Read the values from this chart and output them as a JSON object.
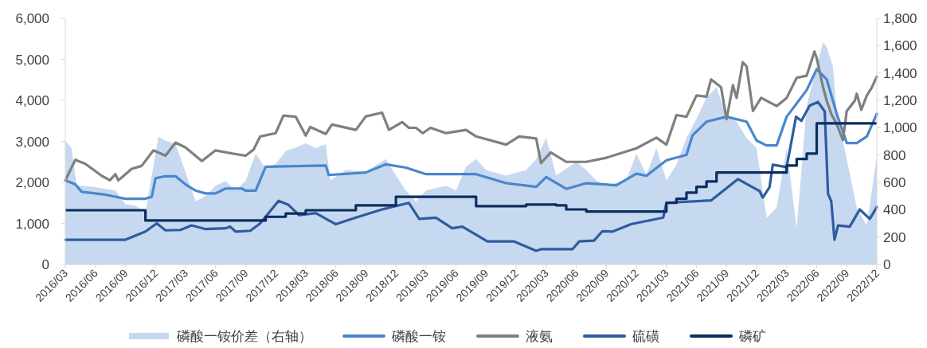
{
  "chart_data": {
    "type": "line",
    "xlim": [
      "2016-03",
      "2022-12"
    ],
    "xticks": [
      {
        "value": "2016-03",
        "label": "2016/03"
      },
      {
        "value": "2016-06",
        "label": "2016/06"
      },
      {
        "value": "2016-09",
        "label": "2016/09"
      },
      {
        "value": "2016-12",
        "label": "2016/12"
      },
      {
        "value": "2017-03",
        "label": "2017/03"
      },
      {
        "value": "2017-06",
        "label": "2017/06"
      },
      {
        "value": "2017-09",
        "label": "2017/09"
      },
      {
        "value": "2017-12",
        "label": "2017/12"
      },
      {
        "value": "2018-03",
        "label": "2018/03"
      },
      {
        "value": "2018-06",
        "label": "2018/06"
      },
      {
        "value": "2018-09",
        "label": "2018/09"
      },
      {
        "value": "2018-12",
        "label": "2018/12"
      },
      {
        "value": "2019-03",
        "label": "2019/03"
      },
      {
        "value": "2019-06",
        "label": "2019/06"
      },
      {
        "value": "2019-09",
        "label": "2019/09"
      },
      {
        "value": "2019-12",
        "label": "2019/12"
      },
      {
        "value": "2020-03",
        "label": "2020/03"
      },
      {
        "value": "2020-06",
        "label": "2020/06"
      },
      {
        "value": "2020-09",
        "label": "2020/09"
      },
      {
        "value": "2020-12",
        "label": "2020/12"
      },
      {
        "value": "2021-03",
        "label": "2021/03"
      },
      {
        "value": "2021-06",
        "label": "2021/06"
      },
      {
        "value": "2021-09",
        "label": "2021/09"
      },
      {
        "value": "2021-12",
        "label": "2021/12"
      },
      {
        "value": "2022-03",
        "label": "2022/03"
      },
      {
        "value": "2022-06",
        "label": "2022/06"
      },
      {
        "value": "2022-09",
        "label": "2022/09"
      },
      {
        "value": "2022-12",
        "label": "2022/12"
      }
    ],
    "ylim": [
      0,
      6000
    ],
    "yticks": [
      0,
      {
        "value": 1000,
        "label": "1,000"
      },
      {
        "value": 2000,
        "label": "2,000"
      },
      {
        "value": 3000,
        "label": "3,000"
      },
      {
        "value": 4000,
        "label": "4,000"
      },
      {
        "value": 5000,
        "label": "5,000"
      },
      {
        "value": 6000,
        "label": "6,000"
      }
    ],
    "y2lim": [
      0,
      1800
    ],
    "y2ticks": [
      0,
      200,
      400,
      600,
      800,
      {
        "value": 1000,
        "label": "1,000"
      },
      {
        "value": 1200,
        "label": "1,200"
      },
      {
        "value": 1400,
        "label": "1,400"
      },
      {
        "value": 1600,
        "label": "1,600"
      },
      {
        "value": 1800,
        "label": "1,800"
      }
    ],
    "legend": "bottom",
    "series": [
      {
        "name": "磷酸一铵价差（右轴）",
        "type": "area",
        "axis": "y2",
        "color": "#c6d9f0",
        "x": [
          "2016-03",
          "2016-03-20",
          "2016-04-05",
          "2016-06",
          "2016-08",
          "2016-09",
          "2016-10",
          "2016-11",
          "2016-12-10",
          "2017-01",
          "2017-02",
          "2017-03",
          "2017-04",
          "2017-05",
          "2017-06",
          "2017-07",
          "2017-08",
          "2017-09",
          "2017-10",
          "2017-11",
          "2017-12",
          "2018-01",
          "2018-02",
          "2018-03",
          "2018-04",
          "2018-05",
          "2018-05-15",
          "2018-07",
          "2018-09",
          "2018-11",
          "2018-12",
          "2019-01",
          "2019-02",
          "2019-03",
          "2019-05",
          "2019-06",
          "2019-07",
          "2019-08",
          "2019-09",
          "2019-11",
          "2020-01",
          "2020-02",
          "2020-03",
          "2020-04",
          "2020-06",
          "2020-07",
          "2020-08",
          "2020-09",
          "2020-11",
          "2020-12",
          "2021-01",
          "2021-02",
          "2021-03",
          "2021-04",
          "2021-05",
          "2021-06",
          "2021-07",
          "2021-08",
          "2021-09",
          "2021-10",
          "2021-11",
          "2021-12",
          "2022-01",
          "2022-02",
          "2022-03",
          "2022-04",
          "2022-05",
          "2022-06",
          "2022-06-20",
          "2022-07",
          "2022-07-20",
          "2022-08",
          "2022-09",
          "2022-10",
          "2022-11",
          "2022-12"
        ],
        "values": [
          905,
          850,
          580,
          565,
          540,
          440,
          430,
          380,
          935,
          905,
          880,
          675,
          460,
          500,
          575,
          610,
          540,
          610,
          810,
          700,
          735,
          830,
          855,
          885,
          850,
          880,
          615,
          690,
          680,
          770,
          650,
          540,
          460,
          540,
          575,
          540,
          715,
          770,
          690,
          650,
          690,
          770,
          925,
          650,
          750,
          690,
          615,
          575,
          615,
          810,
          655,
          850,
          615,
          730,
          925,
          1065,
          1220,
          1295,
          1080,
          1045,
          925,
          850,
          340,
          415,
          850,
          265,
          1160,
          1450,
          1625,
          1590,
          1450,
          1120,
          770,
          415,
          285,
          790
        ]
      },
      {
        "name": "磷酸一铵",
        "type": "line",
        "color": "#4a86cc",
        "x": [
          "2016-03",
          "2016-04",
          "2016-04-20",
          "2016-07",
          "2016-09",
          "2016-11",
          "2016-11-20",
          "2016-12",
          "2017-01",
          "2017-02",
          "2017-03",
          "2017-04",
          "2017-05",
          "2017-06",
          "2017-07",
          "2017-08-20",
          "2017-09",
          "2017-10",
          "2017-11",
          "2018-05",
          "2018-05-10",
          "2018-09",
          "2018-11",
          "2019-01",
          "2019-03",
          "2019-08",
          "2019-11",
          "2020-02",
          "2020-03",
          "2020-05",
          "2020-07",
          "2020-10",
          "2020-12",
          "2021-01",
          "2021-03",
          "2021-05",
          "2021-05-20",
          "2021-07",
          "2021-09",
          "2021-11",
          "2021-12",
          "2022-01",
          "2022-02",
          "2022-03",
          "2022-05",
          "2022-06",
          "2022-07",
          "2022-08",
          "2022-09",
          "2022-10",
          "2022-11",
          "2022-12"
        ],
        "values": [
          2050,
          1950,
          1770,
          1700,
          1600,
          1600,
          1650,
          2100,
          2150,
          2150,
          1950,
          1800,
          1730,
          1730,
          1850,
          1850,
          1800,
          1800,
          2380,
          2410,
          2180,
          2240,
          2440,
          2360,
          2200,
          2200,
          1980,
          1890,
          2130,
          1840,
          1980,
          1930,
          2210,
          2160,
          2540,
          2670,
          3150,
          3480,
          3600,
          3480,
          3020,
          2900,
          2900,
          3600,
          4250,
          4760,
          4510,
          3670,
          2960,
          2960,
          3120,
          3670
        ]
      },
      {
        "name": "液氨",
        "type": "line",
        "color": "#7f7f7f",
        "x": [
          "2016-03",
          "2016-04",
          "2016-05",
          "2016-06-20",
          "2016-07-15",
          "2016-08",
          "2016-08-10",
          "2016-09-20",
          "2016-10-20",
          "2016-11-25",
          "2017-01",
          "2017-02",
          "2017-03",
          "2017-04-20",
          "2017-06",
          "2017-07-25",
          "2017-09",
          "2017-09-25",
          "2017-10-15",
          "2017-12",
          "2017-12-25",
          "2018-02",
          "2018-03",
          "2018-03-15",
          "2018-05",
          "2018-05-20",
          "2018-08",
          "2018-09",
          "2018-10-20",
          "2018-11-10",
          "2018-12-20",
          "2019-01-10",
          "2019-02",
          "2019-02-20",
          "2019-03-15",
          "2019-05",
          "2019-07",
          "2019-08",
          "2019-11",
          "2019-12-10",
          "2020-02",
          "2020-02-15",
          "2020-03-15",
          "2020-05",
          "2020-07",
          "2020-09",
          "2020-12",
          "2021-02",
          "2021-03",
          "2021-04",
          "2021-05",
          "2021-06",
          "2021-07",
          "2021-07-15",
          "2021-08-15",
          "2021-09",
          "2021-09-20",
          "2021-10",
          "2021-10-20",
          "2021-11",
          "2021-11-20",
          "2021-12-15",
          "2022-02",
          "2022-03",
          "2022-04",
          "2022-05",
          "2022-05-25",
          "2022-06",
          "2022-06-20",
          "2022-07",
          "2022-07-15",
          "2022-08",
          "2022-08-20",
          "2022-09",
          "2022-09-25",
          "2022-10",
          "2022-10-15",
          "2022-11",
          "2022-11-15",
          "2022-12"
        ],
        "values": [
          2050,
          2550,
          2450,
          2160,
          2050,
          2200,
          2050,
          2330,
          2400,
          2780,
          2650,
          2970,
          2850,
          2520,
          2780,
          2700,
          2650,
          2800,
          3120,
          3200,
          3630,
          3600,
          3140,
          3350,
          3180,
          3410,
          3280,
          3610,
          3700,
          3280,
          3470,
          3330,
          3330,
          3200,
          3330,
          3200,
          3280,
          3120,
          2920,
          3120,
          3070,
          2470,
          2730,
          2500,
          2500,
          2600,
          2830,
          3090,
          2920,
          3640,
          3600,
          4120,
          4090,
          4510,
          4320,
          3540,
          4370,
          4060,
          4930,
          4830,
          3740,
          4060,
          3860,
          4060,
          4550,
          4600,
          5190,
          5030,
          4320,
          3990,
          3670,
          3420,
          3030,
          3740,
          3990,
          4160,
          3770,
          4120,
          4300,
          4580
        ]
      },
      {
        "name": "硫磺",
        "type": "line",
        "color": "#2f5b9f",
        "x": [
          "2016-03",
          "2016-09",
          "2016-11",
          "2016-12-05",
          "2017-01",
          "2017-02-15",
          "2017-03-20",
          "2017-05",
          "2017-07",
          "2017-07-15",
          "2017-08",
          "2017-09-15",
          "2017-10-15",
          "2017-12-10",
          "2018-01-10",
          "2018-02-10",
          "2018-04",
          "2018-06",
          "2018-08",
          "2018-10-20",
          "2019-01-10",
          "2019-02-10",
          "2019-04",
          "2019-05-20",
          "2019-06-20",
          "2019-09-05",
          "2019-11-25",
          "2020-02",
          "2020-02-15",
          "2020-05-20",
          "2020-06-10",
          "2020-07-25",
          "2020-08-20",
          "2020-09-20",
          "2020-11-15",
          "2021-02-20",
          "2021-03",
          "2021-07-15",
          "2021-10-05",
          "2021-12-10",
          "2021-12-20",
          "2022-01-10",
          "2022-01-20",
          "2022-03",
          "2022-03-30",
          "2022-04-15",
          "2022-05-10",
          "2022-06-05",
          "2022-06-25",
          "2022-07-05",
          "2022-07-15",
          "2022-07-25",
          "2022-08-05",
          "2022-09-10",
          "2022-10-10",
          "2022-11-10",
          "2022-12"
        ],
        "values": [
          600,
          600,
          800,
          1000,
          830,
          840,
          950,
          860,
          880,
          920,
          800,
          820,
          1000,
          1550,
          1450,
          1200,
          1250,
          980,
          1140,
          1340,
          1500,
          1110,
          1140,
          880,
          920,
          560,
          560,
          330,
          370,
          370,
          560,
          580,
          810,
          800,
          980,
          1140,
          1500,
          1560,
          2080,
          1790,
          1630,
          1880,
          2430,
          2370,
          3600,
          3500,
          3870,
          3960,
          3730,
          1720,
          1540,
          600,
          950,
          920,
          1340,
          1110,
          1400
        ]
      },
      {
        "name": "磷矿",
        "type": "step",
        "color": "#0b2e5e",
        "x": [
          "2016-03",
          "2016-11",
          "2017-11",
          "2018-01",
          "2018-03",
          "2018-08",
          "2018-12",
          "2019-08",
          "2020-01",
          "2020-04",
          "2020-05",
          "2020-07",
          "2021-03",
          "2021-04",
          "2021-05",
          "2021-06",
          "2021-07",
          "2021-08",
          "2022-03",
          "2022-04",
          "2022-05",
          "2022-06",
          "2022-12"
        ],
        "values": [
          1320,
          1070,
          1160,
          1240,
          1320,
          1440,
          1650,
          1420,
          1460,
          1440,
          1340,
          1290,
          1500,
          1600,
          1750,
          1890,
          2020,
          2240,
          2410,
          2570,
          2700,
          3440,
          3440
        ]
      }
    ]
  }
}
